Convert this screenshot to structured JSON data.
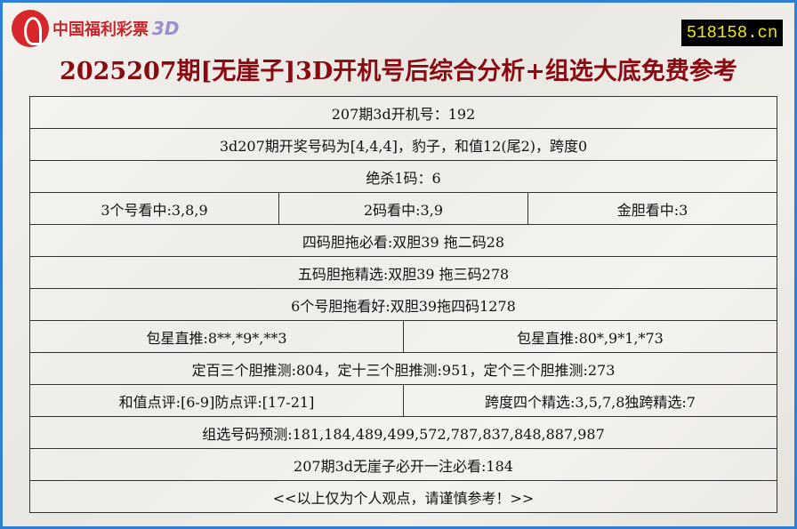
{
  "header": {
    "logo_text": "中国福利彩票",
    "logo_3d": "3D",
    "site": "518158.cn",
    "title": "2025207期[无崖子]3D开机号后综合分析+组选大底免费参考"
  },
  "rows": {
    "r1": "207期3d开机号：192",
    "r2": "3d207期开奖号码为[4,4,4]，豹子，和值12(尾2)，跨度0",
    "r3": "绝杀1码：6",
    "r4": [
      "3个号看中:3,8,9",
      "2码看中:3,9",
      "金胆看中:3"
    ],
    "r5": "四码胆拖必看:双胆39 拖二码28",
    "r6": "五码胆拖精选:双胆39 拖三码278",
    "r7": "6个号胆拖看好:双胆39拖四码1278",
    "r8": [
      "包星直推:8**,*9*,**3",
      "包星直推:80*,9*1,*73"
    ],
    "r9": "定百三个胆推测:804，定十三个胆推测:951，定个三个胆推测:273",
    "r10": [
      "和值点评:[6-9]防点评:[17-21]",
      "跨度四个精选:3,5,7,8独跨精选:7"
    ],
    "r11": "组选号码预测:181,184,489,499,572,787,837,848,887,987",
    "r12": "207期3d无崖子必开一注必看:184",
    "r13": "<<以上仅为个人观点，请谨慎参考！>>"
  },
  "colors": {
    "title": "#8b0a12",
    "border": "#2f7fd8",
    "site_bg": "#000000",
    "site_fg": "#f2e600"
  }
}
